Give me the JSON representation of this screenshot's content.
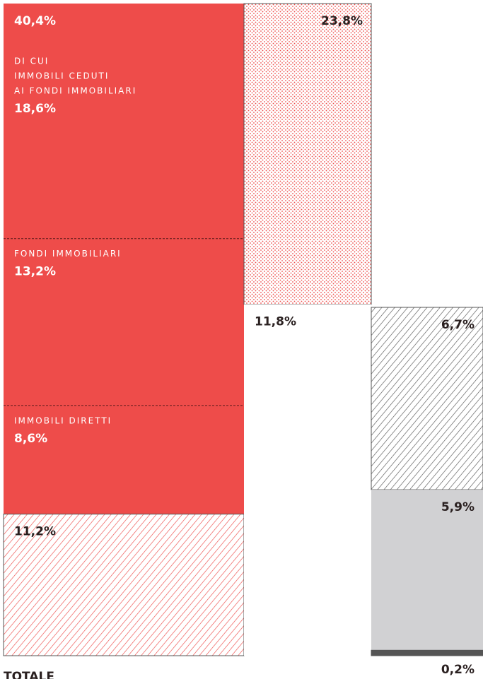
{
  "chart_data": {
    "type": "treemap",
    "blocks": [
      {
        "value": 40.4,
        "value_label": "40,4%",
        "column": 0,
        "color": "#ee4c4a",
        "fill": "solid",
        "parts": [
          {
            "name": [
              "DI CUI",
              "IMMOBILI CEDUTI",
              "AI FONDI IMMOBILIARI"
            ],
            "value": 18.6,
            "value_label": "18,6%"
          },
          {
            "name": [
              "FONDI IMMOBILIARI"
            ],
            "value": 13.2,
            "value_label": "13,2%"
          },
          {
            "name": [
              "IMMOBILI DIRETTI"
            ],
            "value": 8.6,
            "value_label": "8,6%"
          }
        ]
      },
      {
        "value": 11.2,
        "value_label": "11,2%",
        "column": 0,
        "color": "#ee4c4a",
        "fill": "hatch"
      },
      {
        "value": 23.8,
        "value_label": "23,8%",
        "column": 1,
        "color": "#ee4c4a",
        "fill": "dots"
      },
      {
        "value": 11.8,
        "value_label": "11,8%",
        "column": 1,
        "color": "#ffffff",
        "fill": "solid"
      },
      {
        "value": 6.7,
        "value_label": "6,7%",
        "column": 2,
        "color": "#555555",
        "fill": "hatch"
      },
      {
        "value": 5.9,
        "value_label": "5,9%",
        "column": 2,
        "color": "#d1d1d3",
        "fill": "solid"
      },
      {
        "value": 0.2,
        "value_label": "0,2%",
        "column": 2,
        "color": "#555555",
        "fill": "solid"
      }
    ],
    "footer": "TOTALE"
  }
}
